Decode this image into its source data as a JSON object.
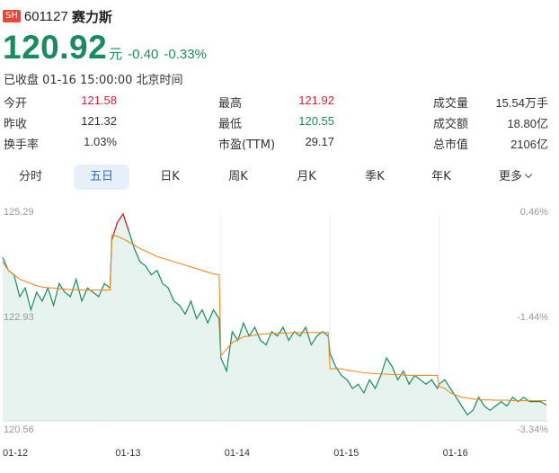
{
  "stock": {
    "market": "SH",
    "code": "601127",
    "name": "赛力斯",
    "price": "120.92",
    "unit": "元",
    "change": "-0.40",
    "change_pct": "-0.33%",
    "status": "已收盘 01-16 15:00:00 北京时间"
  },
  "stats": [
    [
      {
        "label": "今开",
        "value": "121.58",
        "color": "red"
      },
      {
        "label": "最高",
        "value": "121.92",
        "color": "red"
      },
      {
        "label": "成交量",
        "value": "15.54万手",
        "color": "none"
      }
    ],
    [
      {
        "label": "昨收",
        "value": "121.32",
        "color": "none"
      },
      {
        "label": "最低",
        "value": "120.55",
        "color": "green"
      },
      {
        "label": "成交额",
        "value": "18.80亿",
        "color": "none"
      }
    ],
    [
      {
        "label": "换手率",
        "value": "1.03%",
        "color": "none"
      },
      {
        "label": "市盈(TTM)",
        "value": "29.17",
        "color": "none"
      },
      {
        "label": "总市值",
        "value": "2106亿",
        "color": "none"
      }
    ]
  ],
  "tabs": [
    "分时",
    "五日",
    "日K",
    "周K",
    "月K",
    "季K",
    "年K",
    "更多"
  ],
  "active_tab": "五日",
  "chart_data": {
    "type": "line",
    "title": "",
    "y_left_ticks": [
      "125.29",
      "122.93",
      "120.56"
    ],
    "y_right_ticks": [
      "0.46%",
      "-1.44%",
      "-3.34%"
    ],
    "ylim": [
      120.56,
      125.29
    ],
    "prev_close": 121.32,
    "x_labels": [
      "01-12",
      "01-13",
      "01-14",
      "01-15",
      "01-16"
    ],
    "colors": {
      "up": "#d0243a",
      "down": "#1a8a5f",
      "avg": "#f08a24",
      "fill": "#e7f3ee"
    },
    "series": [
      {
        "day": "01-12",
        "price": [
          124.3,
          124.0,
          123.9,
          123.4,
          123.6,
          123.1,
          123.5,
          123.3,
          123.6,
          123.2,
          123.7,
          123.5,
          123.4,
          123.8,
          123.3,
          123.6,
          123.5,
          123.4,
          123.7,
          123.6
        ],
        "avg": [
          124.2,
          124.0,
          123.9,
          123.8,
          123.75,
          123.7,
          123.65,
          123.62,
          123.6,
          123.6,
          123.58,
          123.57,
          123.56,
          123.56,
          123.55,
          123.55,
          123.55,
          123.55,
          123.55,
          123.55
        ]
      },
      {
        "day": "01-13",
        "price": [
          124.7,
          125.1,
          125.29,
          124.9,
          124.5,
          124.2,
          124.1,
          123.9,
          124.0,
          123.7,
          123.6,
          123.3,
          123.2,
          123.0,
          123.3,
          122.9,
          123.1,
          122.8,
          123.1,
          122.9
        ],
        "avg": [
          124.8,
          124.78,
          124.72,
          124.65,
          124.58,
          124.5,
          124.44,
          124.38,
          124.32,
          124.28,
          124.24,
          124.2,
          124.16,
          124.12,
          124.08,
          124.04,
          124.0,
          123.96,
          123.92,
          123.9
        ]
      },
      {
        "day": "01-14",
        "price": [
          122.0,
          121.7,
          122.6,
          122.4,
          122.8,
          122.5,
          122.7,
          122.4,
          122.3,
          122.6,
          122.5,
          122.7,
          122.4,
          122.6,
          122.5,
          122.7,
          122.3,
          122.5,
          122.6,
          122.5
        ],
        "avg": [
          122.05,
          122.2,
          122.35,
          122.42,
          122.48,
          122.5,
          122.52,
          122.54,
          122.55,
          122.56,
          122.56,
          122.57,
          122.57,
          122.58,
          122.58,
          122.58,
          122.58,
          122.58,
          122.58,
          122.58
        ]
      },
      {
        "day": "01-15",
        "price": [
          122.1,
          121.8,
          121.6,
          121.5,
          121.3,
          121.4,
          121.2,
          121.5,
          121.3,
          121.6,
          122.0,
          121.8,
          121.5,
          121.7,
          121.4,
          121.6,
          121.5,
          121.4,
          121.5,
          121.3
        ],
        "avg": [
          121.75,
          121.75,
          121.75,
          121.72,
          121.7,
          121.68,
          121.66,
          121.65,
          121.64,
          121.63,
          121.63,
          121.62,
          121.62,
          121.61,
          121.6,
          121.6,
          121.6,
          121.6,
          121.6,
          121.6
        ]
      },
      {
        "day": "01-16",
        "price": [
          121.4,
          121.5,
          121.3,
          121.1,
          120.9,
          120.7,
          120.8,
          121.1,
          120.9,
          120.8,
          120.9,
          121.0,
          120.9,
          121.1,
          121.0,
          121.1,
          121.0,
          121.0,
          121.0,
          120.92
        ],
        "avg": [
          121.35,
          121.3,
          121.2,
          121.15,
          121.1,
          121.08,
          121.06,
          121.05,
          121.04,
          121.04,
          121.03,
          121.03,
          121.03,
          121.02,
          121.02,
          121.02,
          121.02,
          121.02,
          121.02,
          121.02
        ]
      }
    ]
  }
}
